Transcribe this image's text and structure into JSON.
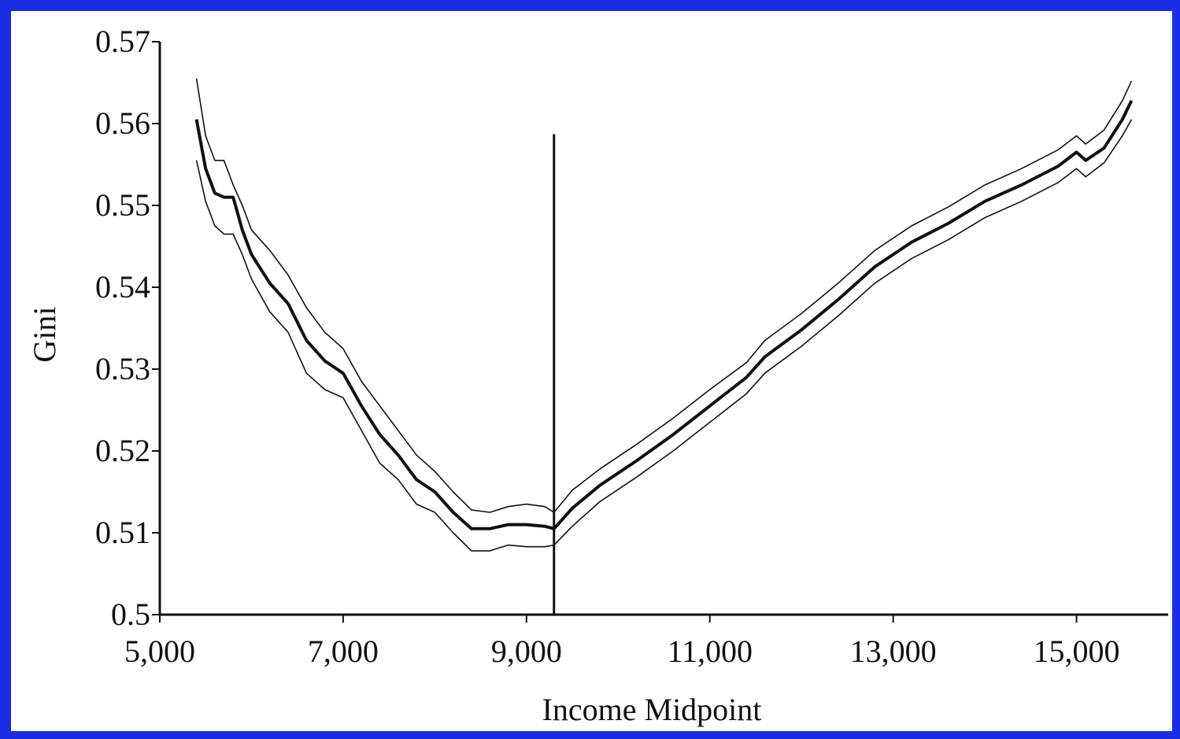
{
  "colors": {
    "border": "#1a2ee6",
    "line": "#111111",
    "background": "#ffffff"
  },
  "chart_data": {
    "type": "line",
    "title": "",
    "xlabel": "Income Midpoint",
    "ylabel": "Gini",
    "xlim": [
      5000,
      16000
    ],
    "ylim": [
      0.5,
      0.57
    ],
    "xticks": [
      5000,
      7000,
      9000,
      11000,
      13000,
      15000
    ],
    "xtick_labels": [
      "5,000",
      "7,000",
      "9,000",
      "11,000",
      "13,000",
      "15,000"
    ],
    "yticks": [
      0.5,
      0.51,
      0.52,
      0.53,
      0.54,
      0.55,
      0.56,
      0.57
    ],
    "ytick_labels": [
      "0.5",
      "0.51",
      "0.52",
      "0.53",
      "0.54",
      "0.55",
      "0.56",
      "0.57"
    ],
    "grid": false,
    "legend": "none",
    "vertical_marker": {
      "x": 9300,
      "y_top": 0.5587
    },
    "x": [
      5400,
      5500,
      5600,
      5700,
      5800,
      5900,
      6000,
      6200,
      6400,
      6600,
      6800,
      7000,
      7200,
      7400,
      7600,
      7800,
      8000,
      8200,
      8400,
      8600,
      8800,
      9000,
      9200,
      9300,
      9500,
      9800,
      10200,
      10600,
      11000,
      11400,
      11600,
      12000,
      12400,
      12800,
      13200,
      13600,
      14000,
      14400,
      14800,
      15000,
      15100,
      15300,
      15500,
      15600
    ],
    "series": [
      {
        "values": [
          0.5605,
          0.5545,
          0.5515,
          0.551,
          0.551,
          0.547,
          0.544,
          0.5405,
          0.538,
          0.5335,
          0.531,
          0.5295,
          0.5255,
          0.522,
          0.5195,
          0.5165,
          0.515,
          0.5125,
          0.5105,
          0.5105,
          0.511,
          0.511,
          0.5108,
          0.5105,
          0.513,
          0.5158,
          0.5188,
          0.522,
          0.5255,
          0.529,
          0.5315,
          0.5348,
          0.5385,
          0.5425,
          0.5455,
          0.5478,
          0.5505,
          0.5525,
          0.5548,
          0.5565,
          0.5555,
          0.557,
          0.5605,
          0.5628
        ]
      },
      {
        "values": [
          0.5655,
          0.5585,
          0.5555,
          0.5555,
          0.5525,
          0.55,
          0.547,
          0.5445,
          0.5415,
          0.5375,
          0.5345,
          0.5325,
          0.5285,
          0.5255,
          0.5225,
          0.5195,
          0.5175,
          0.515,
          0.5128,
          0.5125,
          0.5132,
          0.5135,
          0.5132,
          0.5125,
          0.5152,
          0.5178,
          0.5208,
          0.524,
          0.5275,
          0.5308,
          0.5335,
          0.5368,
          0.5405,
          0.5445,
          0.5475,
          0.5498,
          0.5525,
          0.5545,
          0.5568,
          0.5585,
          0.5575,
          0.5592,
          0.5628,
          0.5652
        ]
      },
      {
        "values": [
          0.5555,
          0.5505,
          0.5475,
          0.5465,
          0.5465,
          0.544,
          0.541,
          0.537,
          0.5345,
          0.5295,
          0.5275,
          0.5265,
          0.5225,
          0.5185,
          0.5165,
          0.5135,
          0.5125,
          0.51,
          0.5078,
          0.5078,
          0.5085,
          0.5083,
          0.5083,
          0.5085,
          0.5108,
          0.5138,
          0.5168,
          0.52,
          0.5235,
          0.527,
          0.5295,
          0.5328,
          0.5365,
          0.5405,
          0.5435,
          0.5458,
          0.5485,
          0.5505,
          0.5528,
          0.5545,
          0.5535,
          0.5552,
          0.5585,
          0.5605
        ]
      }
    ]
  }
}
